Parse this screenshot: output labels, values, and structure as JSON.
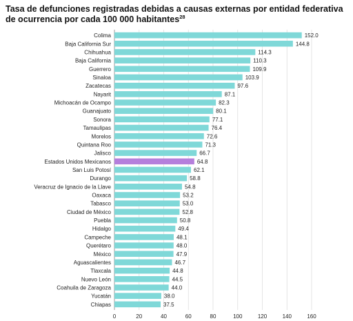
{
  "chart_data": {
    "type": "bar",
    "orientation": "horizontal",
    "title": "Tasa de defunciones registradas debidas a causas externas por entidad federativa de ocurrencia por cada 100 000 habitantes",
    "title_superscript": "28",
    "xlim": [
      0,
      160
    ],
    "xticks": [
      "0",
      "20",
      "40",
      "60",
      "80",
      "100",
      "120",
      "140",
      "160"
    ],
    "xtick_values": [
      0,
      20,
      40,
      60,
      80,
      100,
      120,
      140,
      160
    ],
    "grid": true,
    "colors": {
      "bar": "#7fd8d8",
      "highlight": "#b57fdc",
      "grid": "#dddddd",
      "axis": "#888888"
    },
    "highlight_category": "Estados Unidos Mexicanos",
    "categories": [
      "Colima",
      "Baja California Sur",
      "Chihuahua",
      "Baja California",
      "Guerrero",
      "Sinaloa",
      "Zacatecas",
      "Nayarit",
      "Michoacán de Ocampo",
      "Guanajuato",
      "Sonora",
      "Tamaulipas",
      "Morelos",
      "Quintana Roo",
      "Jalisco",
      "Estados Unidos Mexicanos",
      "San Luis Potosí",
      "Durango",
      "Veracruz de Ignacio de la Llave",
      "Oaxaca",
      "Tabasco",
      "Ciudad de México",
      "Puebla",
      "Hidalgo",
      "Campeche",
      "Querétaro",
      "México",
      "Aguascalientes",
      "Tlaxcala",
      "Nuevo León",
      "Coahuila de Zaragoza",
      "Yucatán",
      "Chiapas"
    ],
    "values": [
      152.0,
      144.8,
      114.3,
      110.3,
      109.9,
      103.9,
      97.6,
      87.1,
      82.3,
      80.1,
      77.1,
      76.4,
      72.6,
      71.3,
      66.7,
      64.8,
      62.1,
      58.8,
      54.8,
      53.2,
      53.0,
      52.8,
      50.8,
      49.4,
      48.1,
      48.0,
      47.9,
      46.7,
      44.8,
      44.5,
      44.0,
      38.0,
      37.5
    ],
    "value_labels": [
      "152.0",
      "144.8",
      "114.3",
      "110.3",
      "109.9",
      "103.9",
      "97.6",
      "87.1",
      "82.3",
      "80.1",
      "77.1",
      "76.4",
      "72.6",
      "71.3",
      "66.7",
      "64.8",
      "62.1",
      "58.8",
      "54.8",
      "53.2",
      "53.0",
      "52.8",
      "50.8",
      "49.4",
      "48.1",
      "48.0",
      "47.9",
      "46.7",
      "44.8",
      "44.5",
      "44.0",
      "38.0",
      "37.5"
    ]
  }
}
